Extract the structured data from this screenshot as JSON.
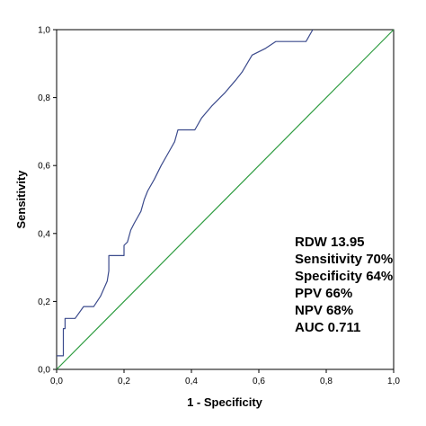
{
  "chart_data": {
    "type": "line",
    "title": "",
    "xlabel": "1 - Specificity",
    "ylabel": "Sensitivity",
    "xlim": [
      0,
      1
    ],
    "ylim": [
      0,
      1
    ],
    "x_ticks": [
      "0,0",
      "0,2",
      "0,4",
      "0,6",
      "0,8",
      "1,0"
    ],
    "y_ticks": [
      "0,0",
      "0,2",
      "0,4",
      "0,6",
      "0,8",
      "1,0"
    ],
    "x_tick_values": [
      0,
      0.2,
      0.4,
      0.6,
      0.8,
      1.0
    ],
    "y_tick_values": [
      0,
      0.2,
      0.4,
      0.6,
      0.8,
      1.0
    ],
    "grid": false,
    "legend": "none",
    "series": [
      {
        "color": "#3b4a8c",
        "x": [
          0.0,
          0.02,
          0.02,
          0.025,
          0.025,
          0.055,
          0.08,
          0.11,
          0.13,
          0.15,
          0.155,
          0.155,
          0.2,
          0.2,
          0.21,
          0.22,
          0.23,
          0.25,
          0.26,
          0.27,
          0.29,
          0.31,
          0.33,
          0.35,
          0.36,
          0.37,
          0.41,
          0.43,
          0.46,
          0.5,
          0.53,
          0.55,
          0.58,
          0.62,
          0.65,
          0.68,
          0.74,
          0.76
        ],
        "y": [
          0.04,
          0.04,
          0.12,
          0.12,
          0.15,
          0.15,
          0.185,
          0.185,
          0.215,
          0.26,
          0.29,
          0.335,
          0.335,
          0.365,
          0.375,
          0.41,
          0.43,
          0.465,
          0.5,
          0.525,
          0.56,
          0.6,
          0.635,
          0.67,
          0.705,
          0.705,
          0.705,
          0.74,
          0.775,
          0.815,
          0.85,
          0.875,
          0.925,
          0.945,
          0.965,
          0.965,
          0.965,
          1.0
        ]
      },
      {
        "color": "#2e9c40",
        "x": [
          0,
          1
        ],
        "y": [
          0,
          1
        ]
      }
    ],
    "annotations": [
      "RDW 13.95",
      "Sensitivity 70%",
      "Specificity 64%",
      "PPV 66%",
      "NPV 68%",
      "AUC 0.711"
    ]
  }
}
